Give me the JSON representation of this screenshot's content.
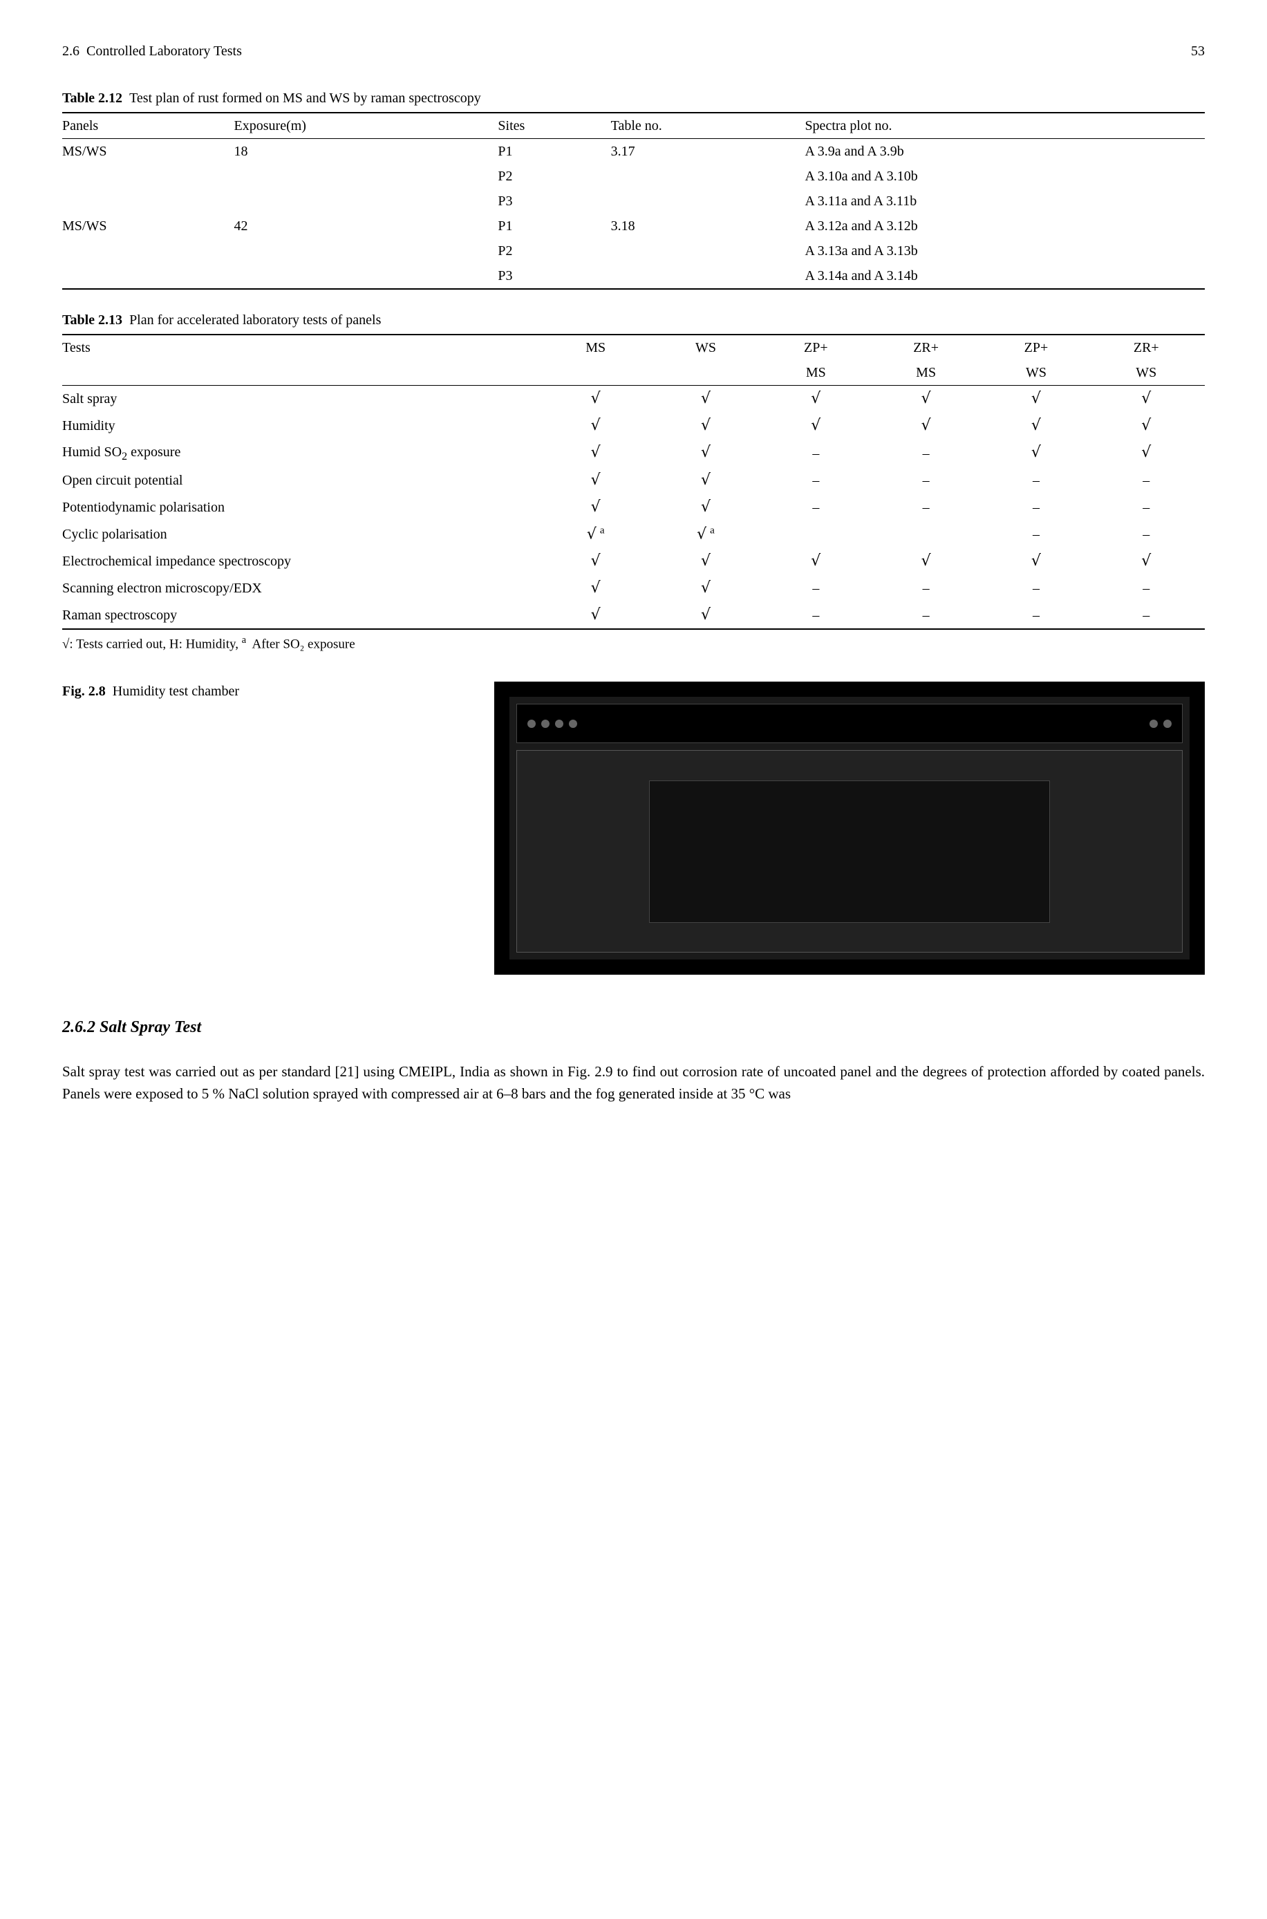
{
  "header": {
    "section_ref": "2.6",
    "section_title": "Controlled Laboratory Tests",
    "page_number": "53"
  },
  "table212": {
    "label": "Table 2.12",
    "caption": "Test plan of rust formed on MS and WS by raman spectroscopy",
    "columns": [
      "Panels",
      "Exposure(m)",
      "Sites",
      "Table no.",
      "Spectra plot no."
    ],
    "rows": [
      [
        "MS/WS",
        "18",
        "P1",
        "3.17",
        "A 3.9a and A 3.9b"
      ],
      [
        "",
        "",
        "P2",
        "",
        "A 3.10a and A 3.10b"
      ],
      [
        "",
        "",
        "P3",
        "",
        "A 3.11a and A 3.11b"
      ],
      [
        "MS/WS",
        "42",
        "P1",
        "3.18",
        "A 3.12a and A 3.12b"
      ],
      [
        "",
        "",
        "P2",
        "",
        "A 3.13a and A 3.13b"
      ],
      [
        "",
        "",
        "P3",
        "",
        "A 3.14a and A 3.14b"
      ]
    ]
  },
  "table213": {
    "label": "Table 2.13",
    "caption": "Plan for accelerated laboratory tests of panels",
    "columns_line1": [
      "Tests",
      "MS",
      "WS",
      "ZP+",
      "ZR+",
      "ZP+",
      "ZR+"
    ],
    "columns_line2": [
      "",
      "",
      "",
      "MS",
      "MS",
      "WS",
      "WS"
    ],
    "tests": [
      {
        "name": "Salt spray",
        "cells": [
          "c",
          "c",
          "c",
          "c",
          "c",
          "c"
        ]
      },
      {
        "name": "Humidity",
        "cells": [
          "c",
          "c",
          "c",
          "c",
          "c",
          "c"
        ]
      },
      {
        "name": "Humid SO₂ exposure",
        "cells": [
          "c",
          "c",
          "d",
          "d",
          "c",
          "c"
        ]
      },
      {
        "name": "Open circuit potential",
        "cells": [
          "c",
          "c",
          "d",
          "d",
          "d",
          "d"
        ]
      },
      {
        "name": "Potentiodynamic polarisation",
        "cells": [
          "c",
          "c",
          "d",
          "d",
          "d",
          "d"
        ]
      },
      {
        "name": "Cyclic polarisation",
        "cells": [
          "ca",
          "ca",
          "",
          "",
          "d",
          "d"
        ]
      },
      {
        "name": "Electrochemical impedance spectroscopy",
        "cells": [
          "c",
          "c",
          "c",
          "c",
          "c",
          "c"
        ]
      },
      {
        "name": "Scanning electron microscopy/EDX",
        "cells": [
          "c",
          "c",
          "d",
          "d",
          "d",
          "d"
        ]
      },
      {
        "name": "Raman spectroscopy",
        "cells": [
          "c",
          "c",
          "d",
          "d",
          "d",
          "d"
        ]
      }
    ],
    "symbols": {
      "c": "√",
      "d": "–",
      "ca": "√ ᵃ"
    },
    "footnote_prefix": "√: Tests carried out, H: Humidity, ",
    "footnote_sup": "a",
    "footnote_suffix": " After SO₂ exposure"
  },
  "figure28": {
    "label": "Fig. 2.8",
    "caption": "Humidity test chamber"
  },
  "section": {
    "number": "2.6.2",
    "title": "Salt Spray Test",
    "body": "Salt spray test was carried out as per standard [21] using CMEIPL, India as shown in Fig. 2.9 to find out corrosion rate of uncoated panel and the degrees of protection afforded by coated panels. Panels were exposed to 5 % NaCl solution sprayed with compressed air at 6–8 bars and the fog generated inside at 35 °C was"
  },
  "styling": {
    "text_color": "#000000",
    "background_color": "#ffffff",
    "rule_color": "#000000",
    "body_fontsize": 21,
    "table_fontsize": 20,
    "heading_fontsize": 24
  }
}
